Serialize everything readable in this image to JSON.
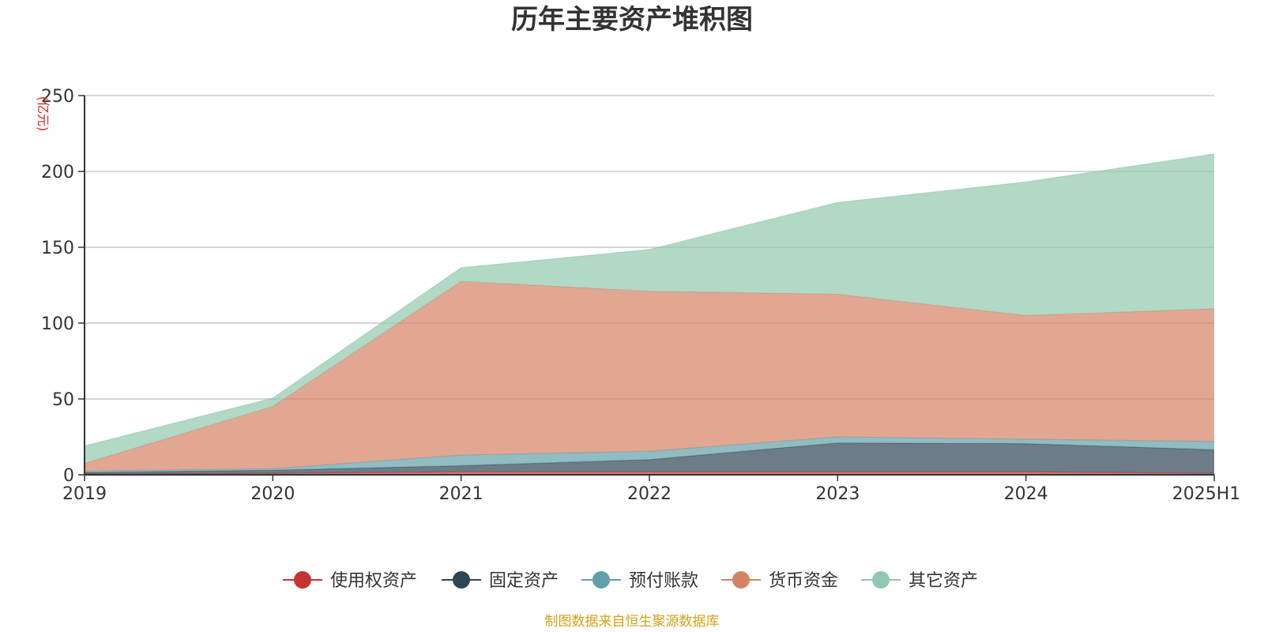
{
  "chart_data": {
    "type": "area",
    "title": "历年主要资产堆积图",
    "unit_label": "(亿元)",
    "categories": [
      "2019",
      "2020",
      "2021",
      "2022",
      "2023",
      "2024",
      "2025H1"
    ],
    "ylim": [
      0,
      250
    ],
    "yticks": [
      "0",
      "50",
      "100",
      "150",
      "200",
      "250"
    ],
    "grid": true,
    "legend_position": "bottom",
    "stacked": true,
    "series": [
      {
        "name": "使用权资产",
        "color": "#c23531",
        "values": [
          0.5,
          1,
          2,
          2,
          2,
          2,
          1
        ]
      },
      {
        "name": "固定资产",
        "color": "#2f4554",
        "values": [
          1,
          2,
          4,
          8,
          19,
          18.5,
          15.5
        ]
      },
      {
        "name": "预付账款",
        "color": "#61a0a8",
        "values": [
          1,
          1,
          7,
          5.5,
          4,
          3,
          5.5
        ]
      },
      {
        "name": "货币资金",
        "color": "#d48265",
        "values": [
          5,
          41,
          114.5,
          105.5,
          94,
          81.5,
          87.5
        ]
      },
      {
        "name": "其它资产",
        "color": "#91c7ae",
        "values": [
          11.5,
          5.5,
          9,
          27.5,
          60.5,
          88,
          102
        ]
      }
    ],
    "source": "制图数据来自恒生聚源数据库"
  }
}
